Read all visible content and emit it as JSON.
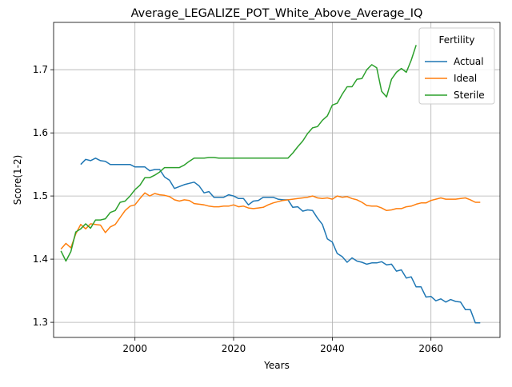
{
  "chart_data": {
    "type": "line",
    "title": "Average_LEGALIZE_POT_White_Above_Average_IQ",
    "xlabel": "Years",
    "ylabel": "Score(1-2)",
    "xlim": [
      1983.5,
      2074
    ],
    "ylim": [
      1.276,
      1.775
    ],
    "xticks": [
      2000,
      2020,
      2040,
      2060
    ],
    "yticks": [
      1.3,
      1.4,
      1.5,
      1.6,
      1.7
    ],
    "grid": true,
    "legend": {
      "title": "Fertility",
      "position": "top-right"
    },
    "series": [
      {
        "name": "Actual",
        "color": "#1f77b4",
        "x": [
          1989,
          1990,
          1991,
          1992,
          1993,
          1994,
          1995,
          1996,
          1997,
          1998,
          1999,
          2000,
          2001,
          2002,
          2003,
          2004,
          2005,
          2006,
          2007,
          2008,
          2009,
          2010,
          2011,
          2012,
          2013,
          2014,
          2015,
          2016,
          2017,
          2018,
          2019,
          2020,
          2021,
          2022,
          2023,
          2024,
          2025,
          2026,
          2027,
          2028,
          2029,
          2030,
          2031,
          2032,
          2033,
          2034,
          2035,
          2036,
          2037,
          2038,
          2039,
          2040,
          2041,
          2042,
          2043,
          2044,
          2045,
          2046,
          2047,
          2048,
          2049,
          2050,
          2051,
          2052,
          2053,
          2054,
          2055,
          2056,
          2057,
          2058,
          2059,
          2060,
          2061,
          2062,
          2063,
          2064,
          2065,
          2066,
          2067,
          2068,
          2069,
          2070
        ],
        "values": [
          1.55,
          1.558,
          1.556,
          1.56,
          1.556,
          1.555,
          1.55,
          1.55,
          1.55,
          1.55,
          1.55,
          1.546,
          1.546,
          1.546,
          1.54,
          1.542,
          1.542,
          1.53,
          1.525,
          1.512,
          1.515,
          1.518,
          1.52,
          1.522,
          1.516,
          1.505,
          1.507,
          1.498,
          1.498,
          1.498,
          1.502,
          1.5,
          1.496,
          1.496,
          1.486,
          1.492,
          1.493,
          1.498,
          1.498,
          1.498,
          1.495,
          1.494,
          1.494,
          1.482,
          1.483,
          1.476,
          1.478,
          1.477,
          1.465,
          1.455,
          1.432,
          1.427,
          1.409,
          1.404,
          1.395,
          1.402,
          1.397,
          1.395,
          1.392,
          1.394,
          1.394,
          1.396,
          1.391,
          1.392,
          1.381,
          1.383,
          1.37,
          1.372,
          1.356,
          1.356,
          1.34,
          1.341,
          1.334,
          1.337,
          1.332,
          1.336,
          1.333,
          1.332,
          1.32,
          1.32,
          1.299,
          1.299
        ]
      },
      {
        "name": "Ideal",
        "color": "#ff7f0e",
        "x": [
          1985,
          1986,
          1987,
          1988,
          1989,
          1990,
          1991,
          1992,
          1993,
          1994,
          1995,
          1996,
          1997,
          1998,
          1999,
          2000,
          2001,
          2002,
          2003,
          2004,
          2005,
          2006,
          2007,
          2008,
          2009,
          2010,
          2011,
          2012,
          2013,
          2014,
          2015,
          2016,
          2017,
          2018,
          2019,
          2020,
          2021,
          2022,
          2023,
          2024,
          2025,
          2026,
          2027,
          2028,
          2029,
          2030,
          2031,
          2032,
          2033,
          2034,
          2035,
          2036,
          2037,
          2038,
          2039,
          2040,
          2041,
          2042,
          2043,
          2044,
          2045,
          2046,
          2047,
          2048,
          2049,
          2050,
          2051,
          2052,
          2053,
          2054,
          2055,
          2056,
          2057,
          2058,
          2059,
          2060,
          2061,
          2062,
          2063,
          2064,
          2065,
          2066,
          2067,
          2068,
          2069,
          2070
        ],
        "values": [
          1.416,
          1.425,
          1.418,
          1.44,
          1.455,
          1.448,
          1.456,
          1.455,
          1.454,
          1.442,
          1.451,
          1.455,
          1.466,
          1.477,
          1.484,
          1.486,
          1.496,
          1.505,
          1.5,
          1.504,
          1.502,
          1.501,
          1.499,
          1.494,
          1.492,
          1.494,
          1.493,
          1.488,
          1.487,
          1.486,
          1.484,
          1.483,
          1.483,
          1.484,
          1.484,
          1.486,
          1.483,
          1.484,
          1.481,
          1.48,
          1.481,
          1.482,
          1.486,
          1.489,
          1.491,
          1.493,
          1.494,
          1.495,
          1.496,
          1.497,
          1.498,
          1.5,
          1.497,
          1.496,
          1.497,
          1.495,
          1.5,
          1.498,
          1.499,
          1.496,
          1.494,
          1.49,
          1.485,
          1.484,
          1.484,
          1.481,
          1.477,
          1.478,
          1.48,
          1.48,
          1.483,
          1.484,
          1.487,
          1.489,
          1.489,
          1.493,
          1.495,
          1.497,
          1.495,
          1.495,
          1.495,
          1.496,
          1.497,
          1.494,
          1.49,
          1.49
        ]
      },
      {
        "name": "Sterile",
        "color": "#2ca02c",
        "x": [
          1985,
          1986,
          1987,
          1988,
          1989,
          1990,
          1991,
          1992,
          1993,
          1994,
          1995,
          1996,
          1997,
          1998,
          1999,
          2000,
          2001,
          2002,
          2003,
          2004,
          2005,
          2006,
          2007,
          2008,
          2009,
          2010,
          2011,
          2012,
          2013,
          2014,
          2015,
          2016,
          2017,
          2018,
          2019,
          2020,
          2021,
          2022,
          2023,
          2024,
          2025,
          2026,
          2027,
          2028,
          2029,
          2030,
          2031,
          2032,
          2033,
          2034,
          2035,
          2036,
          2037,
          2038,
          2039,
          2040,
          2041,
          2042,
          2043,
          2044,
          2045,
          2046,
          2047,
          2048,
          2049,
          2050,
          2051,
          2052,
          2053,
          2054,
          2055,
          2056,
          2057
        ],
        "values": [
          1.413,
          1.397,
          1.412,
          1.443,
          1.448,
          1.456,
          1.449,
          1.462,
          1.462,
          1.464,
          1.474,
          1.477,
          1.49,
          1.492,
          1.5,
          1.51,
          1.517,
          1.529,
          1.529,
          1.533,
          1.538,
          1.545,
          1.545,
          1.545,
          1.545,
          1.549,
          1.555,
          1.56,
          1.56,
          1.56,
          1.561,
          1.561,
          1.56,
          1.56,
          1.56,
          1.56,
          1.56,
          1.56,
          1.56,
          1.56,
          1.56,
          1.56,
          1.56,
          1.56,
          1.56,
          1.56,
          1.56,
          1.568,
          1.578,
          1.587,
          1.599,
          1.608,
          1.61,
          1.62,
          1.627,
          1.644,
          1.647,
          1.661,
          1.673,
          1.673,
          1.685,
          1.686,
          1.7,
          1.708,
          1.703,
          1.666,
          1.657,
          1.685,
          1.696,
          1.702,
          1.696,
          1.715,
          1.739
        ]
      }
    ]
  }
}
